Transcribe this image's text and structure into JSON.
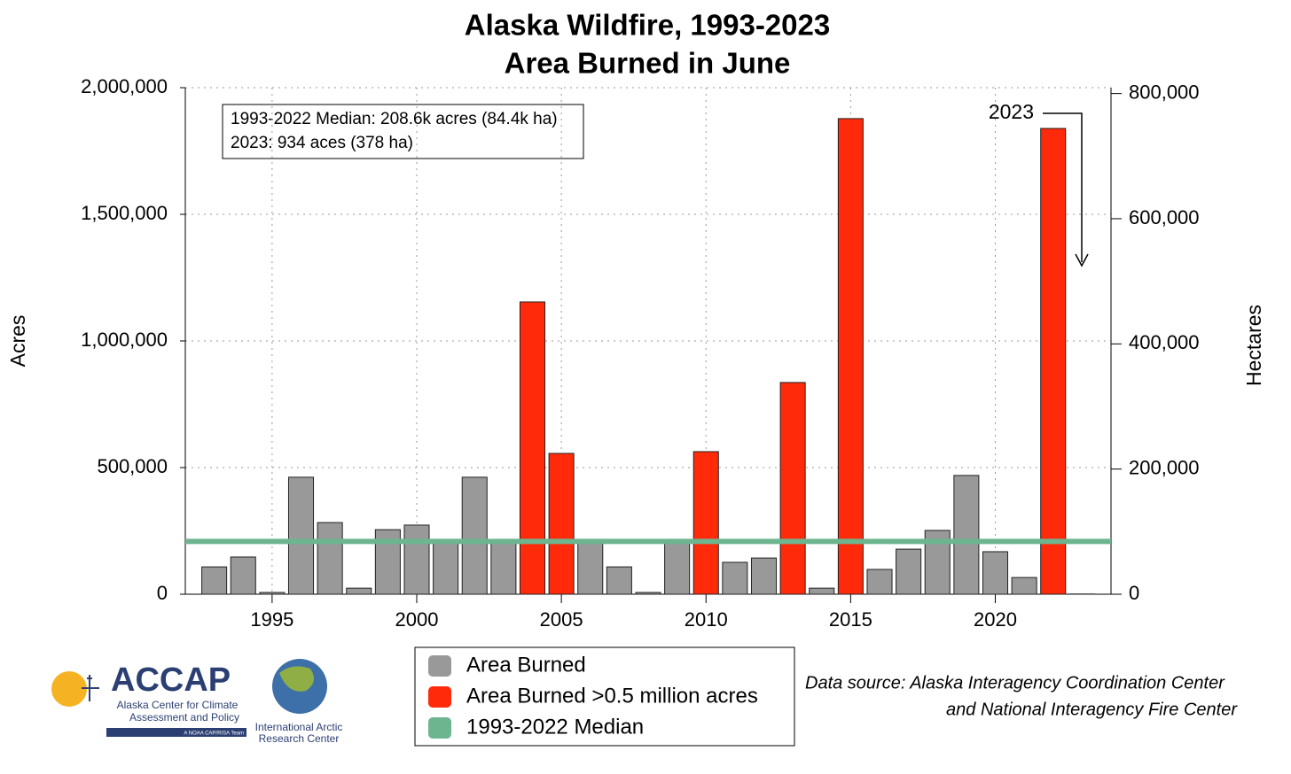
{
  "chart_data": {
    "type": "bar",
    "title": "Alaska Wildfire, 1993-2023",
    "subtitle": "Area Burned in June",
    "y_label": "Acres",
    "y2_label": "Hectares",
    "x": [
      1993,
      1994,
      1995,
      1996,
      1997,
      1998,
      1999,
      2000,
      2001,
      2002,
      2003,
      2004,
      2005,
      2006,
      2007,
      2008,
      2009,
      2010,
      2011,
      2012,
      2013,
      2014,
      2015,
      2016,
      2017,
      2018,
      2019,
      2020,
      2021,
      2022,
      2023
    ],
    "series": [
      {
        "name": "Area Burned",
        "color": "#999999",
        "values": [
          108000,
          147000,
          7000,
          462000,
          283000,
          24000,
          255000,
          273000,
          203000,
          462000,
          206000,
          null,
          null,
          210000,
          108000,
          7000,
          213000,
          null,
          126000,
          143000,
          null,
          24000,
          null,
          98000,
          178000,
          252000,
          469000,
          168000,
          66000,
          null,
          934
        ]
      },
      {
        "name": "Area Burned >0.5 million acres",
        "color": "#ff2a0a",
        "values": [
          null,
          null,
          null,
          null,
          null,
          null,
          null,
          null,
          null,
          null,
          null,
          1154000,
          556000,
          null,
          null,
          null,
          null,
          563000,
          null,
          null,
          836000,
          null,
          1878000,
          null,
          null,
          null,
          null,
          null,
          null,
          1839000,
          null
        ]
      }
    ],
    "median": {
      "name": "1993-2022 Median",
      "value": 208600,
      "color": "#6db58f"
    },
    "xlim": [
      1992,
      2024
    ],
    "xticks": [
      1995,
      2000,
      2005,
      2010,
      2015,
      2020
    ],
    "ylim": [
      0,
      2000000
    ],
    "yticks": [
      0,
      {
        "value": 500000,
        "label": "500,000"
      },
      {
        "value": 1000000,
        "label": "1,000,000"
      },
      {
        "value": 1500000,
        "label": "1,500,000"
      },
      {
        "value": 2000000,
        "label": "2,000,000"
      }
    ],
    "y2lim": [
      0,
      809371
    ],
    "y2ticks": [
      0,
      {
        "value": 200000,
        "label": "200,000"
      },
      {
        "value": 400000,
        "label": "400,000"
      },
      {
        "value": 600000,
        "label": "600,000"
      },
      {
        "value": 800000,
        "label": "800,000"
      }
    ],
    "grid": true,
    "annotations": {
      "box": [
        "1993-2022 Median: 208.6k acres (84.4k ha)",
        "2023: 934 aces (378 ha)"
      ],
      "arrow_label": "2023"
    },
    "source": [
      "Data source: Alaska Interagency Coordination Center",
      "and National Interagency Fire Center"
    ],
    "logos": {
      "accap": "ACCAP",
      "accap_name": [
        "Alaska Center for Climate",
        "Assessment and Policy"
      ],
      "accap_team": "A NOAA CAP/RISA Team",
      "iarc": [
        "International Arctic",
        "Research Center"
      ]
    }
  }
}
